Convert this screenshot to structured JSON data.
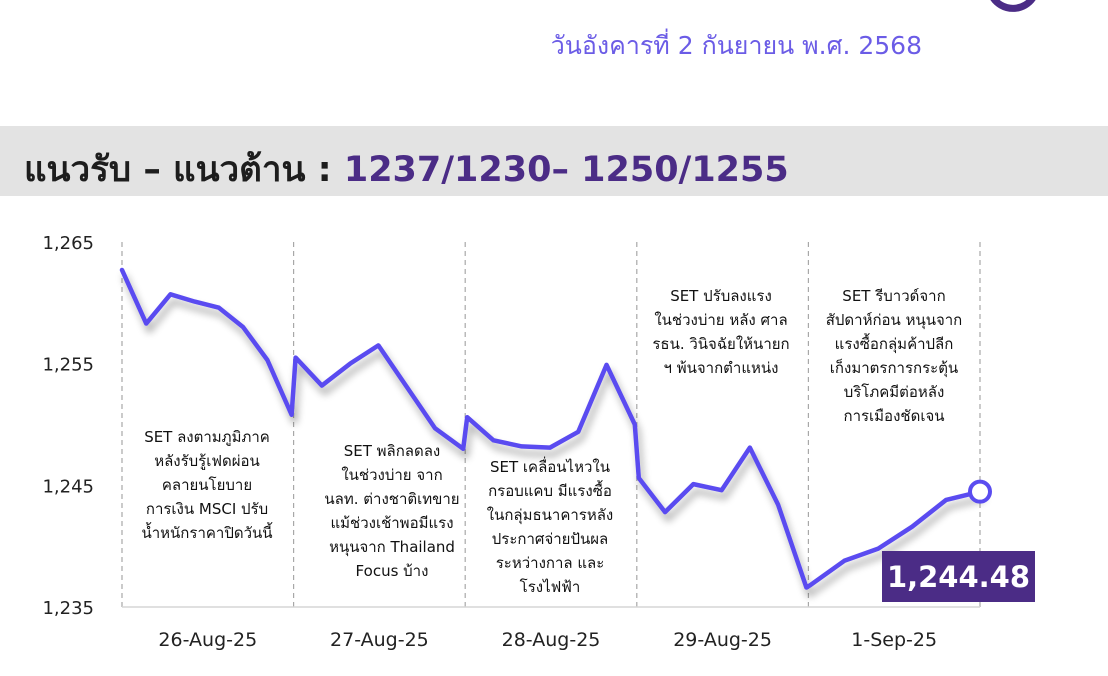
{
  "header": {
    "date": "วันอังคารที่ 2 กันยายน พ.ศ. 2568"
  },
  "band": {
    "label": "แนวรับ – แนวต้าน : ",
    "values": "1237/1230– 1250/1255"
  },
  "chart_data": {
    "type": "line",
    "title": "",
    "xlabel": "",
    "ylabel": "",
    "ylim": [
      1235,
      1265
    ],
    "yticks": [
      1235,
      1245,
      1255,
      1265
    ],
    "ytick_labels": [
      "1,235",
      "1,245",
      "1,255",
      "1,265"
    ],
    "categories": [
      "26-Aug-25",
      "27-Aug-25",
      "28-Aug-25",
      "29-Aug-25",
      "1-Sep-25"
    ],
    "grid": "vertical dashed session separators",
    "series": [
      {
        "color": "#5a4cf0",
        "values": [
          [
            1262.7,
            1258.3,
            1260.7,
            1260.1,
            1259.6,
            1258.0,
            1255.3,
            1250.8
          ],
          [
            1255.5,
            1253.2,
            1255.0,
            1256.5,
            1253.1,
            1249.7,
            1248.0
          ],
          [
            1250.6,
            1248.7,
            1248.2,
            1248.1,
            1249.4,
            1254.9,
            1250.0
          ],
          [
            1245.6,
            1242.8,
            1245.1,
            1244.6,
            1248.1,
            1243.4,
            1236.6
          ],
          [
            1236.8,
            1238.8,
            1239.8,
            1241.6,
            1243.8,
            1244.48
          ]
        ]
      }
    ],
    "last_value_label": "1,244.48",
    "annotations": [
      "SET ลงตามภูมิภาค\nหลังรับรู้เฟดผ่อน\nคลายนโยบาย\nการเงิน MSCI ปรับ\nน้ำหนักราคาปิดวันนี้",
      "SET พลิกลดลง\nในช่วงบ่าย จาก\nนลท. ต่างชาติเทขาย\nแม้ช่วงเช้าพอมีแรง\nหนุนจาก Thailand\nFocus บ้าง",
      "SET เคลื่อนไหวใน\nกรอบแคบ มีแรงซื้อ\nในกลุ่มธนาคารหลัง\nประกาศจ่ายปันผล\nระหว่างกาล และ\nโรงไฟฟ้า",
      "SET ปรับลงแรง\nในช่วงบ่าย หลัง ศาล\nรธน. วินิจฉัยให้นายก\nฯ พ้นจากตำแหน่ง",
      "SET รีบาวด์จาก\nสัปดาห์ก่อน หนุนจาก\nแรงซื้อกลุ่มค้าปลีก\nเก็งมาตรการกระตุ้น\nบริโภคมีต่อหลัง\nการเมืองชัดเจน"
    ]
  }
}
